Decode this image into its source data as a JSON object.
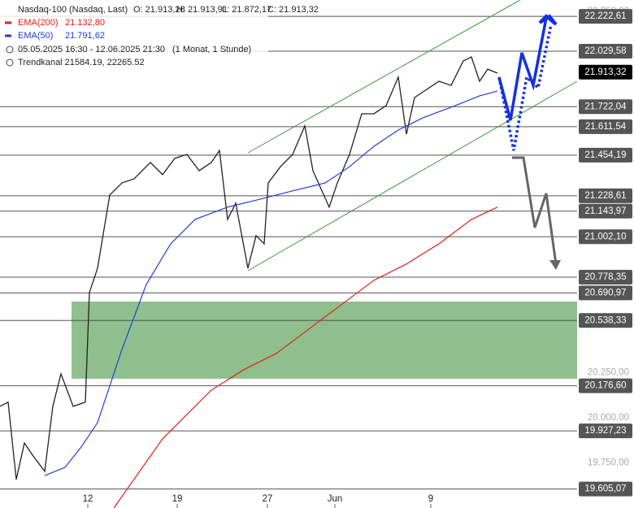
{
  "chart_data": {
    "type": "line",
    "title": "Nasdaq-100 (Nasdaq, Last)",
    "ohlc": [
      "O: 21.913,26",
      "H: 21.913,91",
      "L: 21.872,17",
      "C: 21.913,32"
    ],
    "period": "05.05.2025 16:30 - 12.06.2025 21:30",
    "interval": "(1 Monat, 1 Stunde)",
    "channel": "Trendkanal  21584.19, 22265.52",
    "series": [
      {
        "name": "Nasdaq-100",
        "color": "#222222",
        "x": [
          0,
          10,
          20,
          30,
          40,
          55,
          65,
          75,
          90,
          105,
          110,
          120,
          130,
          135,
          150,
          165,
          185,
          200,
          215,
          230,
          245,
          260,
          270,
          280,
          290,
          305,
          315,
          325,
          330,
          345,
          360,
          375,
          385,
          405,
          415,
          430,
          445,
          460,
          475,
          490,
          500,
          510,
          525,
          540,
          555,
          570,
          580,
          590,
          600,
          612
        ],
        "values": [
          20063,
          20086,
          19658,
          19860,
          19793,
          19703,
          20063,
          20243,
          20063,
          20086,
          20693,
          20828,
          21098,
          21233,
          21300,
          21323,
          21413,
          21346,
          21436,
          21458,
          21368,
          21413,
          21480,
          21098,
          21188,
          20828,
          21008,
          20963,
          21300,
          21390,
          21458,
          21616,
          21368,
          21166,
          21300,
          21458,
          21683,
          21683,
          21728,
          21886,
          21570,
          21773,
          21818,
          21863,
          21840,
          21976,
          21998,
          21863,
          21930,
          21908
        ]
      },
      {
        "name": "EMA(200)",
        "legend_value": "21.132,80",
        "color": "#e0201b",
        "x": [
          140,
          200,
          260,
          300,
          340,
          380,
          420,
          460,
          500,
          540,
          580,
          612
        ],
        "values": [
          19500,
          19883,
          20153,
          20266,
          20356,
          20491,
          20626,
          20761,
          20851,
          20963,
          21098,
          21166
        ]
      },
      {
        "name": "EMA(50)",
        "legend_value": "21.791,62",
        "color": "#1d3fd6",
        "x": [
          55,
          80,
          100,
          120,
          150,
          180,
          210,
          240,
          280,
          320,
          360,
          400,
          430,
          460,
          490,
          520,
          560,
          590,
          612
        ],
        "values": [
          19680,
          19725,
          19838,
          19973,
          20378,
          20738,
          20963,
          21098,
          21166,
          21210,
          21256,
          21300,
          21390,
          21503,
          21593,
          21660,
          21728,
          21782,
          21809
        ]
      }
    ],
    "xlim": [
      0,
      710
    ],
    "xticks": [
      {
        "value": 108,
        "label": "12"
      },
      {
        "value": 218,
        "label": "19"
      },
      {
        "value": 329,
        "label": "27"
      },
      {
        "value": 412,
        "label": "Jun"
      },
      {
        "value": 530,
        "label": "9"
      }
    ],
    "ylim": [
      19500,
      22313
    ],
    "yticks": [
      {
        "value": 22250,
        "label": "22.250,00"
      },
      {
        "value": 20250,
        "label": "20.250,00"
      },
      {
        "value": 20000,
        "label": "20.000,00"
      },
      {
        "value": 19750,
        "label": "19.750,00"
      }
    ],
    "levels": [
      {
        "value": 22222.61,
        "label": "22.222,61"
      },
      {
        "value": 22029.58,
        "label": "22.029,58"
      },
      {
        "value": 21722.04,
        "label": "21.722,04"
      },
      {
        "value": 21611.54,
        "label": "21.611,54"
      },
      {
        "value": 21454.19,
        "label": "21.454,19"
      },
      {
        "value": 21228.61,
        "label": "21.228,61"
      },
      {
        "value": 21143.97,
        "label": "21.143,97"
      },
      {
        "value": 21002.1,
        "label": "21.002,10"
      },
      {
        "value": 20778.35,
        "label": "20.778,35"
      },
      {
        "value": 20690.97,
        "label": "20.690,97"
      },
      {
        "value": 20538.33,
        "label": "20.538,33"
      },
      {
        "value": 20176.6,
        "label": "20.176,60"
      },
      {
        "value": 19927.23,
        "label": "19.927,23"
      },
      {
        "value": 19605.07,
        "label": "19.605,07"
      }
    ],
    "last_price": {
      "value": 21913.32,
      "label": "21.913,32"
    },
    "zone": [
      20216,
      20643
    ],
    "zone_color": "#8fbf8c"
  }
}
